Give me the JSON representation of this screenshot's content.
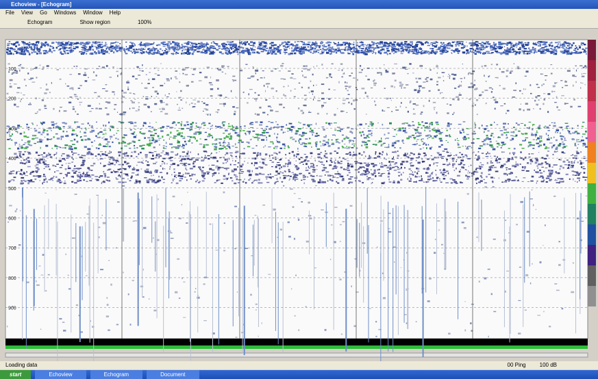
{
  "window": {
    "title": "Echoview - [Echogram]",
    "menu": [
      "File",
      "View",
      "Go",
      "Windows",
      "Window",
      "Help"
    ],
    "toolbar": [
      "Echogram",
      "Show region",
      "100%"
    ]
  },
  "echogram": {
    "depth_labels": [
      "100",
      "200",
      "300",
      "400",
      "500",
      "600",
      "700",
      "800",
      "900"
    ]
  },
  "status": {
    "left": "Loading data",
    "right": [
      "00 Ping",
      "100 dB"
    ]
  },
  "taskbar": {
    "start": "start",
    "items": [
      "Echoview",
      "Echogram",
      "Document"
    ]
  }
}
